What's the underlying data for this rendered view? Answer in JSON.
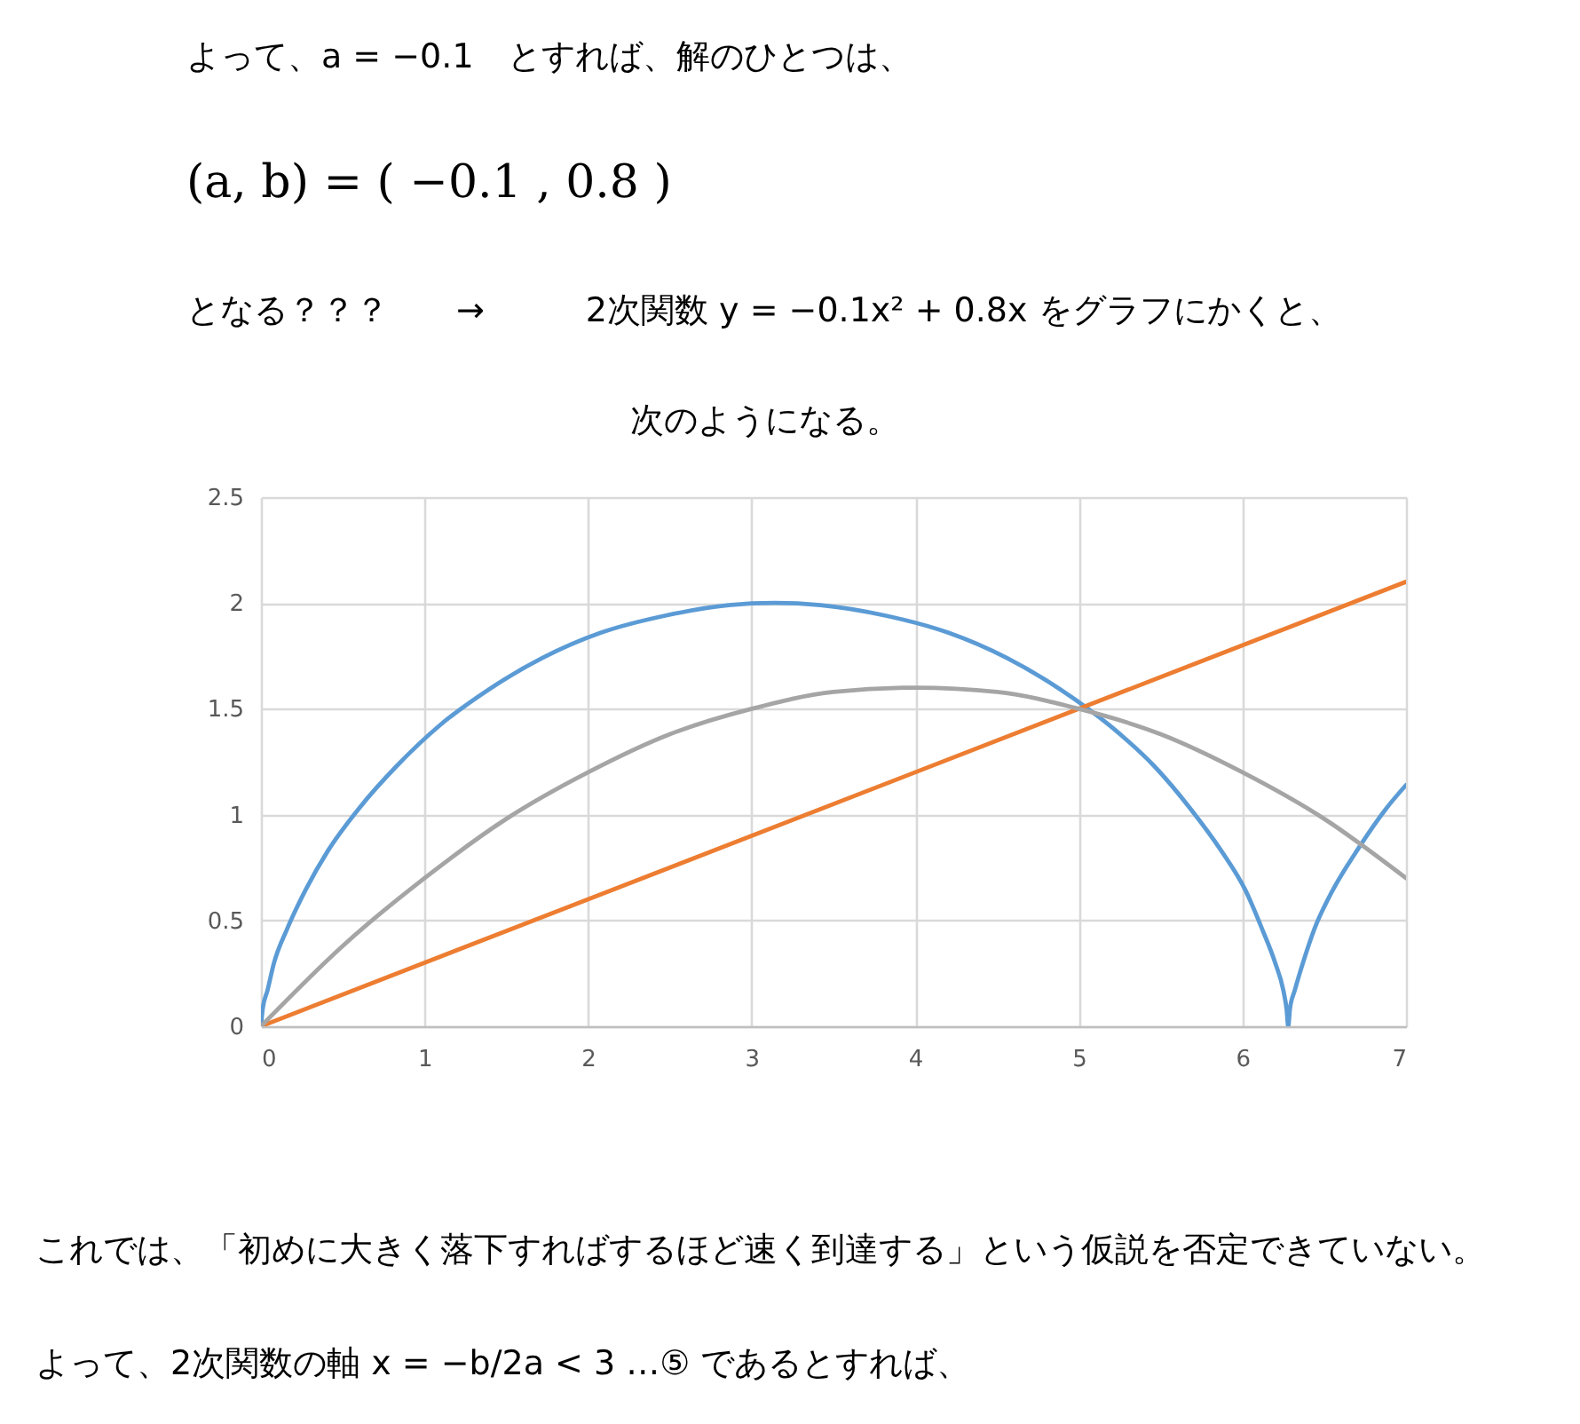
{
  "chart_data": {
    "type": "line",
    "annotations": [
      "よって、a = −0.1　とすれば、解のひとつは、",
      "(a, b) = ( −0.1 , 0.8 )",
      "となる？？？　　→　　　2次関数 y = −0.1x² + 0.8x をグラフにかくと、",
      "次のようになる。",
      "これでは、「初めに大きく落下すればするほど速く到達する」という仮説を否定できていない。",
      "よって、2次関数の軸 x = −b/2a < 3 …⑤ であるとすれば、"
    ],
    "xlim": [
      0,
      7
    ],
    "xticks": [
      0,
      1,
      2,
      3,
      4,
      5,
      6,
      7
    ],
    "ylim": [
      0,
      2.5
    ],
    "yticks": [
      0,
      0.5,
      1,
      1.5,
      2,
      2.5
    ],
    "grid": true,
    "series": [
      {
        "color": "#5b9bd5",
        "x": [
          0,
          0.01,
          0.04,
          0.08,
          0.16,
          0.27,
          0.41,
          0.6,
          0.83,
          1.09,
          1.39,
          1.72,
          2.08,
          2.47,
          2.86,
          3.14,
          3.42,
          3.82,
          4.2,
          4.56,
          4.89,
          5.19,
          5.46,
          5.68,
          5.87,
          6.02,
          6.12,
          6.2,
          6.25,
          6.27,
          6.28,
          6.29,
          6.32,
          6.37,
          6.44,
          6.55,
          6.7,
          6.88,
          7
        ],
        "values": [
          0,
          0.08,
          0.17,
          0.3,
          0.46,
          0.64,
          0.83,
          1.03,
          1.23,
          1.42,
          1.59,
          1.74,
          1.86,
          1.94,
          1.99,
          2,
          1.99,
          1.94,
          1.86,
          1.74,
          1.59,
          1.42,
          1.23,
          1.03,
          0.83,
          0.64,
          0.46,
          0.3,
          0.17,
          0.08,
          0,
          0.08,
          0.17,
          0.3,
          0.46,
          0.64,
          0.83,
          1.03,
          1.14
        ]
      },
      {
        "color": "#ed7d31",
        "x": [
          0,
          7
        ],
        "values": [
          0,
          2.1
        ]
      },
      {
        "color": "#a5a5a5",
        "x": [
          0,
          0.5,
          1,
          1.5,
          2,
          2.5,
          3,
          3.5,
          4,
          4.5,
          5,
          5.5,
          6,
          6.5,
          7
        ],
        "values": [
          0,
          0.38,
          0.7,
          0.98,
          1.2,
          1.38,
          1.5,
          1.58,
          1.6,
          1.58,
          1.5,
          1.38,
          1.2,
          0.98,
          0.7
        ]
      }
    ]
  }
}
